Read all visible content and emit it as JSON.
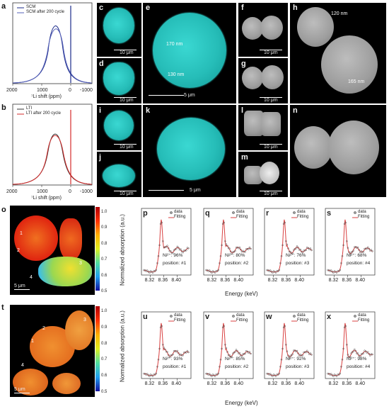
{
  "labels": {
    "a": "a",
    "b": "b",
    "c": "c",
    "d": "d",
    "e": "e",
    "f": "f",
    "g": "g",
    "h": "h",
    "i": "i",
    "j": "j",
    "k": "k",
    "l": "l",
    "m": "m",
    "n": "n",
    "o": "o",
    "t": "t",
    "p": "p",
    "q": "q",
    "r": "r",
    "s": "s",
    "u": "u",
    "v": "v",
    "w": "w",
    "x": "x"
  },
  "nmr": {
    "panel_a": {
      "legend": [
        "SCM",
        "SCM after 200 cycle"
      ],
      "xticks": [
        "2000",
        "1000",
        "0",
        "-1000"
      ],
      "xlabel": "⁷Li shift (ppm)"
    },
    "panel_b": {
      "legend": [
        "LTI",
        "LTI after 200 cycle"
      ],
      "xticks": [
        "2000",
        "1000",
        "0",
        "-1000"
      ],
      "xlabel": "⁷Li shift (ppm)"
    }
  },
  "scalebars": {
    "ten_um": "10 μm",
    "five_um": "5 μm"
  },
  "annotations": {
    "e_170": "170 nm",
    "e_130": "130 nm",
    "h_120": "120 nm",
    "h_165": "165 nm",
    "o_particles": [
      "1",
      "2",
      "3",
      "4"
    ],
    "t_particles": [
      "1",
      "2",
      "3",
      "4"
    ]
  },
  "colorbar": {
    "ticks": [
      "1.0",
      "0.9",
      "0.8",
      "0.7",
      "0.6",
      "0.5"
    ]
  },
  "colorbar_t": {
    "ticks": [
      "1.0",
      "0.9",
      "0.8",
      "0.7",
      "0.6",
      "0.5"
    ]
  },
  "xas": {
    "ylabel": "Normalized absorption (a.u.)",
    "xlabel": "Energy (keV)",
    "xticks": [
      "8.32",
      "8.36",
      "8.40"
    ],
    "legend": [
      "data",
      "Fitting"
    ],
    "row1": [
      {
        "ni": "Ni²⁺: 96%",
        "pos": "position: #1"
      },
      {
        "ni": "Ni²⁺: 80%",
        "pos": "position: #2"
      },
      {
        "ni": "Ni²⁺: 76%",
        "pos": "position: #3"
      },
      {
        "ni": "Ni²⁺: 68%",
        "pos": "position: #4"
      }
    ],
    "row2": [
      {
        "ni": "Ni²⁺: 93%",
        "pos": "position: #1"
      },
      {
        "ni": "Ni²⁺: 85%",
        "pos": "position: #2"
      },
      {
        "ni": "Ni²⁺: 92%",
        "pos": "position: #3"
      },
      {
        "ni": "Ni²⁺: 98%",
        "pos": "position: #4"
      }
    ]
  },
  "colors": {
    "scm_line": "#1a2a8a",
    "lti_line": "#d42a2a",
    "cyan": "#26bdb8",
    "fit": "#d94040"
  }
}
